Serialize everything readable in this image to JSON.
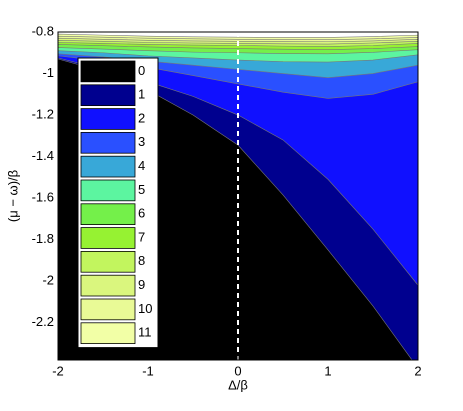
{
  "chart_data": {
    "type": "filled-contour",
    "xlabel": "Δ/β",
    "ylabel": "(μ − ω)/β",
    "x": [
      -2,
      -1.5,
      -1,
      -0.5,
      0,
      0.5,
      1,
      1.5,
      2
    ],
    "series": [
      {
        "name": "0",
        "color": "#000000",
        "values": [
          -0.93,
          -0.99,
          -1.08,
          -1.2,
          -1.345,
          -1.585,
          -1.85,
          -2.12,
          -2.42
        ]
      },
      {
        "name": "1",
        "color": "#00008f",
        "values": [
          -0.925,
          -0.98,
          -1.04,
          -1.11,
          -1.2,
          -1.32,
          -1.51,
          -1.75,
          -2.02
        ]
      },
      {
        "name": "2",
        "color": "#1010ff",
        "values": [
          -0.915,
          -0.94,
          -0.97,
          -1.01,
          -1.05,
          -1.09,
          -1.12,
          -1.1,
          -1.04
        ]
      },
      {
        "name": "3",
        "color": "#2a50ff",
        "values": [
          -0.905,
          -0.92,
          -0.94,
          -0.96,
          -0.98,
          -1.0,
          -1.02,
          -1.0,
          -0.96
        ]
      },
      {
        "name": "4",
        "color": "#38a8d8",
        "values": [
          -0.89,
          -0.9,
          -0.915,
          -0.925,
          -0.935,
          -0.943,
          -0.945,
          -0.935,
          -0.91
        ]
      },
      {
        "name": "5",
        "color": "#5cf5a0",
        "values": [
          -0.875,
          -0.882,
          -0.89,
          -0.897,
          -0.9,
          -0.904,
          -0.905,
          -0.898,
          -0.885
        ]
      },
      {
        "name": "6",
        "color": "#74f04a",
        "values": [
          -0.86,
          -0.866,
          -0.872,
          -0.877,
          -0.88,
          -0.883,
          -0.885,
          -0.88,
          -0.87
        ]
      },
      {
        "name": "7",
        "color": "#96f232",
        "values": [
          -0.85,
          -0.855,
          -0.86,
          -0.863,
          -0.865,
          -0.868,
          -0.87,
          -0.865,
          -0.855
        ]
      },
      {
        "name": "8",
        "color": "#c2f55e",
        "values": [
          -0.84,
          -0.845,
          -0.85,
          -0.853,
          -0.855,
          -0.857,
          -0.858,
          -0.853,
          -0.845
        ]
      },
      {
        "name": "9",
        "color": "#daf67e",
        "values": [
          -0.83,
          -0.835,
          -0.84,
          -0.843,
          -0.845,
          -0.846,
          -0.847,
          -0.843,
          -0.835
        ]
      },
      {
        "name": "10",
        "color": "#e9fa96",
        "values": [
          -0.82,
          -0.825,
          -0.83,
          -0.833,
          -0.835,
          -0.836,
          -0.837,
          -0.833,
          -0.826
        ]
      },
      {
        "name": "11",
        "color": "#f2ffa6",
        "values": [
          -0.81,
          -0.815,
          -0.82,
          -0.823,
          -0.825,
          -0.826,
          -0.826,
          -0.822,
          -0.815
        ]
      }
    ],
    "reference_line_x": 0,
    "xlim": [
      -2,
      2
    ],
    "ylim": [
      -2.38,
      -0.8
    ],
    "xticks": [
      -2,
      -1,
      0,
      1,
      2
    ],
    "yticks": [
      -0.8,
      -1,
      -1.2,
      -1.4,
      -1.6,
      -1.8,
      -2,
      -2.2
    ],
    "legend": "upper left"
  }
}
